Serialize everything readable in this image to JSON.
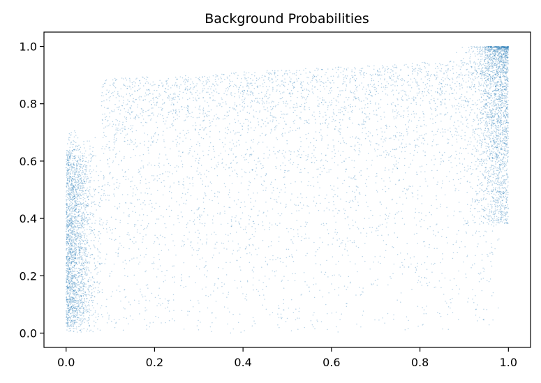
{
  "chart_data": {
    "type": "scatter",
    "title": "Background Probabilities",
    "xlabel": "",
    "ylabel": "",
    "xlim": [
      -0.05,
      1.05
    ],
    "ylim": [
      -0.05,
      1.05
    ],
    "x_ticks": [
      "0.0",
      "0.2",
      "0.4",
      "0.6",
      "0.8",
      "1.0"
    ],
    "y_ticks": [
      "0.0",
      "0.2",
      "0.4",
      "0.6",
      "0.8",
      "1.0"
    ],
    "x_tick_values": [
      0.0,
      0.2,
      0.4,
      0.6,
      0.8,
      1.0
    ],
    "y_tick_values": [
      0.0,
      0.2,
      0.4,
      0.6,
      0.8,
      1.0
    ],
    "grid": false,
    "legend": "none",
    "marker_color": "#1f77b4",
    "density_clusters": [
      {
        "region": "left-edge",
        "x": [
          0.0,
          0.08
        ],
        "y": [
          0.0,
          0.6
        ],
        "share": 0.26
      },
      {
        "region": "right-edge",
        "x": [
          0.88,
          1.0
        ],
        "y": [
          0.4,
          1.0
        ],
        "share": 0.26
      },
      {
        "region": "upper-band",
        "x": [
          0.1,
          0.95
        ],
        "y": [
          0.55,
          0.95
        ],
        "share": 0.28
      },
      {
        "region": "diffuse-interior",
        "x": [
          0.05,
          0.98
        ],
        "y": [
          0.0,
          0.6
        ],
        "share": 0.2
      }
    ]
  }
}
